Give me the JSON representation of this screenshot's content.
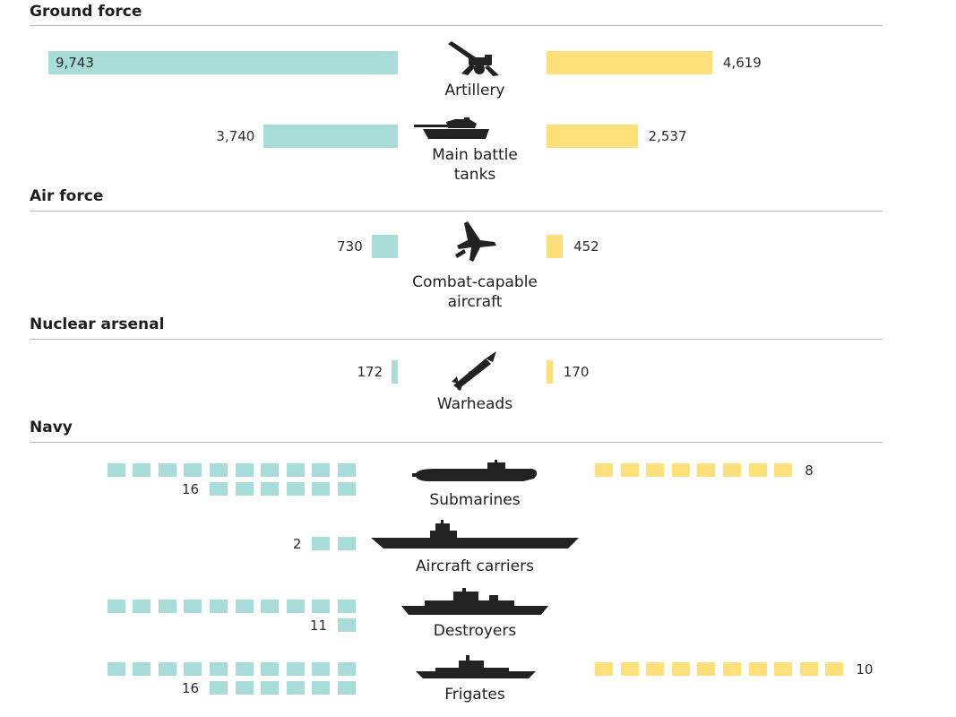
{
  "colors": {
    "left": "#a8dcd9",
    "right": "#fde07a",
    "icon": "#222222",
    "rule": "#b9b9b9"
  },
  "sections": {
    "ground": "Ground force",
    "air": "Air force",
    "nuclear": "Nuclear arsenal",
    "navy": "Navy"
  },
  "chart_data": {
    "type": "bar",
    "bars": [
      {
        "category": "Artillery",
        "section": "Ground force",
        "icon": "artillery-icon",
        "left_value": 9743,
        "left_label": "9,743",
        "right_value": 4619,
        "right_label": "4,619"
      },
      {
        "category": "Main battle tanks",
        "lines": [
          "Main battle",
          "tanks"
        ],
        "section": "Ground force",
        "icon": "tank-icon",
        "left_value": 3740,
        "left_label": "3,740",
        "right_value": 2537,
        "right_label": "2,537"
      },
      {
        "category": "Combat-capable aircraft",
        "lines": [
          "Combat-capable",
          "aircraft"
        ],
        "section": "Air force",
        "icon": "fighter-jet-icon",
        "left_value": 730,
        "left_label": "730",
        "right_value": 452,
        "right_label": "452"
      },
      {
        "category": "Warheads",
        "section": "Nuclear arsenal",
        "icon": "missile-icon",
        "left_value": 172,
        "left_label": "172",
        "right_value": 170,
        "right_label": "170"
      }
    ],
    "navy": [
      {
        "category": "Submarines",
        "icon": "submarine-icon",
        "left_value": 16,
        "left_label": "16",
        "right_value": 8,
        "right_label": "8"
      },
      {
        "category": "Aircraft carriers",
        "icon": "aircraft-carrier-icon",
        "left_value": 2,
        "left_label": "2",
        "right_value": 0,
        "right_label": ""
      },
      {
        "category": "Destroyers",
        "icon": "destroyer-icon",
        "left_value": 11,
        "left_label": "11",
        "right_value": 0,
        "right_label": ""
      },
      {
        "category": "Frigates",
        "icon": "frigate-icon",
        "left_value": 16,
        "left_label": "16",
        "right_value": 10,
        "right_label": "10"
      }
    ],
    "squares_per_row": 10,
    "title": "",
    "xlabel": "",
    "ylabel": ""
  }
}
